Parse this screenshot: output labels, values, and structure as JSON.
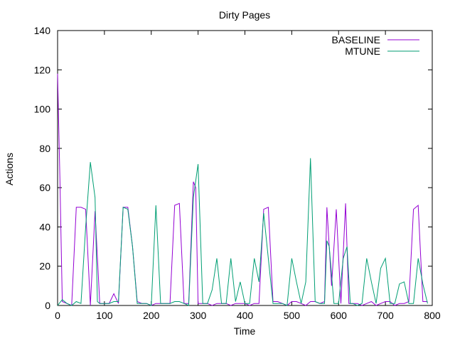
{
  "chart_data": {
    "type": "line",
    "title": "Dirty Pages",
    "xlabel": "Time",
    "ylabel": "Actions",
    "xlim": [
      0,
      800
    ],
    "ylim": [
      0,
      140
    ],
    "xticks": [
      0,
      100,
      200,
      300,
      400,
      500,
      600,
      700,
      800
    ],
    "yticks": [
      0,
      20,
      40,
      60,
      80,
      100,
      120,
      140
    ],
    "grid": false,
    "legend_placement": "top-right",
    "series": [
      {
        "name": "BASELINE",
        "color": "#9400d3",
        "points": [
          [
            0,
            118
          ],
          [
            5,
            64
          ],
          [
            10,
            2
          ],
          [
            20,
            1
          ],
          [
            30,
            0
          ],
          [
            40,
            50
          ],
          [
            50,
            50
          ],
          [
            60,
            49
          ],
          [
            70,
            0
          ],
          [
            80,
            48
          ],
          [
            90,
            1
          ],
          [
            100,
            1
          ],
          [
            110,
            1
          ],
          [
            120,
            6
          ],
          [
            130,
            1
          ],
          [
            140,
            50
          ],
          [
            150,
            50
          ],
          [
            160,
            30
          ],
          [
            170,
            2
          ],
          [
            180,
            1
          ],
          [
            190,
            1
          ],
          [
            200,
            0
          ],
          [
            210,
            1
          ],
          [
            220,
            1
          ],
          [
            230,
            1
          ],
          [
            240,
            1
          ],
          [
            250,
            51
          ],
          [
            260,
            52
          ],
          [
            270,
            1
          ],
          [
            280,
            1
          ],
          [
            290,
            63
          ],
          [
            295,
            60
          ],
          [
            300,
            1
          ],
          [
            310,
            1
          ],
          [
            320,
            1
          ],
          [
            330,
            0
          ],
          [
            340,
            1
          ],
          [
            350,
            1
          ],
          [
            360,
            1
          ],
          [
            370,
            0
          ],
          [
            380,
            1
          ],
          [
            390,
            1
          ],
          [
            400,
            1
          ],
          [
            410,
            0
          ],
          [
            420,
            1
          ],
          [
            430,
            1
          ],
          [
            440,
            49
          ],
          [
            450,
            50
          ],
          [
            460,
            2
          ],
          [
            470,
            2
          ],
          [
            480,
            1
          ],
          [
            490,
            0
          ],
          [
            500,
            2
          ],
          [
            510,
            2
          ],
          [
            520,
            1
          ],
          [
            530,
            0
          ],
          [
            540,
            2
          ],
          [
            550,
            2
          ],
          [
            560,
            1
          ],
          [
            570,
            2
          ],
          [
            575,
            50
          ],
          [
            585,
            10
          ],
          [
            595,
            49
          ],
          [
            605,
            1
          ],
          [
            615,
            52
          ],
          [
            622,
            1
          ],
          [
            630,
            1
          ],
          [
            640,
            1
          ],
          [
            650,
            0
          ],
          [
            660,
            1
          ],
          [
            670,
            2
          ],
          [
            680,
            0
          ],
          [
            690,
            1
          ],
          [
            700,
            2
          ],
          [
            710,
            2
          ],
          [
            720,
            0
          ],
          [
            730,
            1
          ],
          [
            740,
            1
          ],
          [
            750,
            2
          ],
          [
            760,
            49
          ],
          [
            770,
            51
          ],
          [
            780,
            2
          ],
          [
            790,
            2
          ]
        ]
      },
      {
        "name": "MTUNE",
        "color": "#009e73",
        "points": [
          [
            0,
            0
          ],
          [
            10,
            3
          ],
          [
            20,
            1
          ],
          [
            30,
            0
          ],
          [
            40,
            2
          ],
          [
            50,
            1
          ],
          [
            60,
            40
          ],
          [
            70,
            73
          ],
          [
            80,
            55
          ],
          [
            85,
            2
          ],
          [
            90,
            1
          ],
          [
            100,
            1
          ],
          [
            110,
            1
          ],
          [
            120,
            2
          ],
          [
            130,
            2
          ],
          [
            140,
            50
          ],
          [
            150,
            49
          ],
          [
            160,
            30
          ],
          [
            170,
            1
          ],
          [
            180,
            1
          ],
          [
            190,
            1
          ],
          [
            200,
            0
          ],
          [
            210,
            51
          ],
          [
            220,
            1
          ],
          [
            230,
            1
          ],
          [
            240,
            1
          ],
          [
            250,
            2
          ],
          [
            260,
            2
          ],
          [
            270,
            1
          ],
          [
            280,
            0
          ],
          [
            290,
            55
          ],
          [
            300,
            72
          ],
          [
            310,
            1
          ],
          [
            320,
            1
          ],
          [
            330,
            8
          ],
          [
            340,
            24
          ],
          [
            350,
            1
          ],
          [
            360,
            1
          ],
          [
            370,
            24
          ],
          [
            380,
            2
          ],
          [
            390,
            12
          ],
          [
            400,
            1
          ],
          [
            410,
            1
          ],
          [
            420,
            24
          ],
          [
            430,
            12
          ],
          [
            440,
            47
          ],
          [
            450,
            24
          ],
          [
            460,
            1
          ],
          [
            470,
            1
          ],
          [
            480,
            1
          ],
          [
            490,
            0
          ],
          [
            500,
            24
          ],
          [
            510,
            12
          ],
          [
            520,
            1
          ],
          [
            530,
            12
          ],
          [
            540,
            75
          ],
          [
            550,
            2
          ],
          [
            560,
            1
          ],
          [
            570,
            1
          ],
          [
            575,
            33
          ],
          [
            580,
            30
          ],
          [
            590,
            1
          ],
          [
            600,
            1
          ],
          [
            610,
            24
          ],
          [
            618,
            30
          ],
          [
            625,
            1
          ],
          [
            630,
            1
          ],
          [
            640,
            0
          ],
          [
            650,
            1
          ],
          [
            660,
            24
          ],
          [
            670,
            12
          ],
          [
            680,
            1
          ],
          [
            690,
            19
          ],
          [
            700,
            24
          ],
          [
            710,
            1
          ],
          [
            720,
            1
          ],
          [
            730,
            11
          ],
          [
            740,
            12
          ],
          [
            750,
            1
          ],
          [
            760,
            1
          ],
          [
            770,
            24
          ],
          [
            780,
            11
          ],
          [
            790,
            1
          ]
        ]
      }
    ]
  }
}
